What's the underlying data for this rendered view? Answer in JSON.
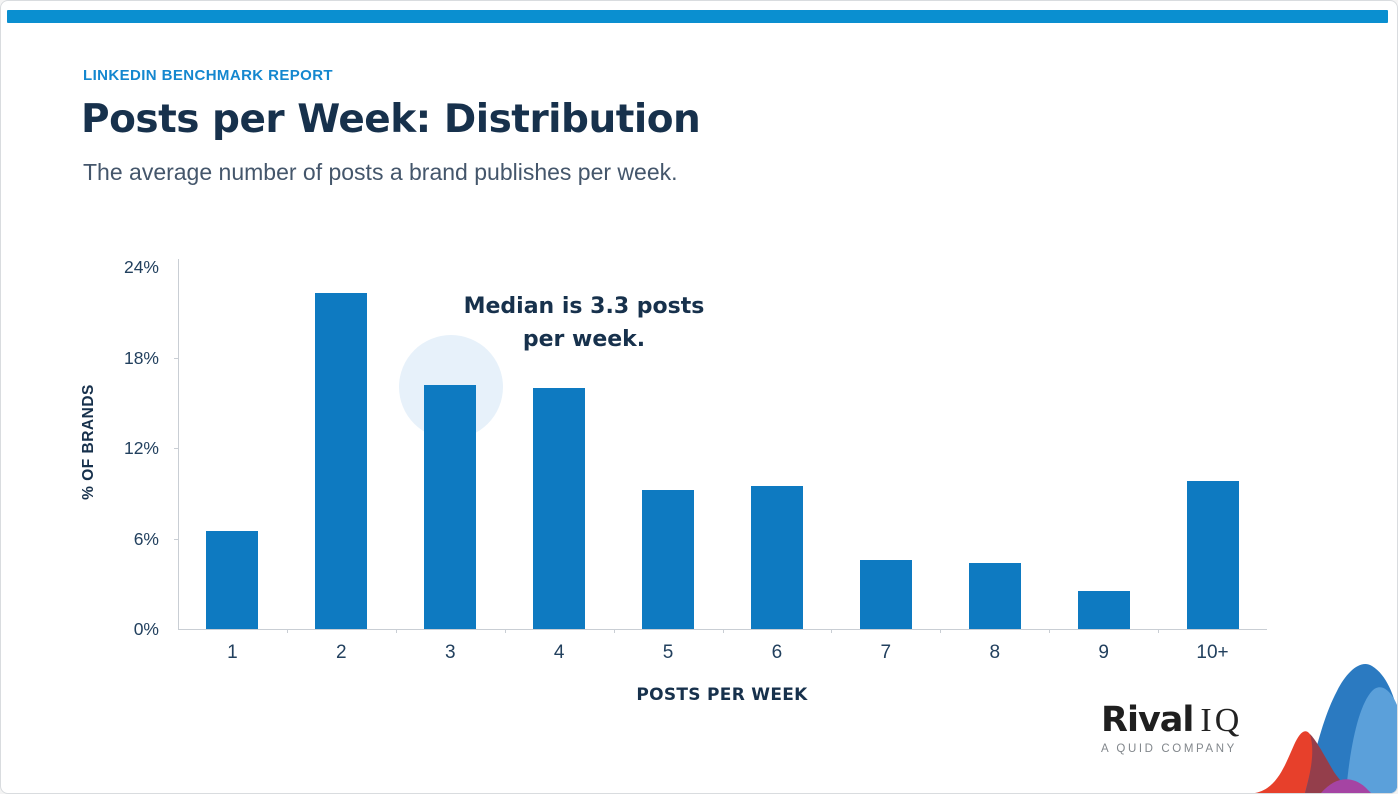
{
  "header": {
    "eyebrow": "LINKEDIN BENCHMARK REPORT",
    "title": "Posts per Week: Distribution",
    "subtitle": "The average number of posts a brand publishes per week."
  },
  "chart_data": {
    "type": "bar",
    "title": "Posts per Week: Distribution",
    "categories": [
      "1",
      "2",
      "3",
      "4",
      "5",
      "6",
      "7",
      "8",
      "9",
      "10+"
    ],
    "values": [
      6.5,
      22.3,
      16.2,
      16.0,
      9.2,
      9.5,
      4.6,
      4.4,
      2.5,
      9.8
    ],
    "xlabel": "POSTS PER WEEK",
    "ylabel": "% OF BRANDS",
    "ylim": [
      0,
      24
    ],
    "y_ticks": [
      {
        "value": 24,
        "label": "24%"
      },
      {
        "value": 18,
        "label": "18%"
      },
      {
        "value": 12,
        "label": "12%"
      },
      {
        "value": 6,
        "label": "6%"
      },
      {
        "value": 0,
        "label": "0%"
      }
    ],
    "grid": false,
    "legend": "none",
    "annotation": {
      "line1": "Median is 3.3 posts",
      "line2": "per week.",
      "highlighted_category": "3"
    }
  },
  "logo": {
    "brand_bold": "Rival",
    "brand_light": "IQ",
    "tagline": "A QUID COMPANY"
  },
  "colors": {
    "accent_bar": "#0a8fd0",
    "bar_blue": "#0e7ac1",
    "eyebrow_blue": "#1487cf",
    "navy": "#17314c",
    "subtitle_gray": "#44566b",
    "tick_navy": "#22405e",
    "highlight_circle": "#e7f1fa",
    "axis_gray": "#c9ced4",
    "decoration_red": "#e7402b",
    "decoration_blue": "#2b7ac1",
    "decoration_light_blue": "#5ba0da",
    "decoration_maroon": "#943e4b",
    "decoration_purple": "#a544a3"
  }
}
